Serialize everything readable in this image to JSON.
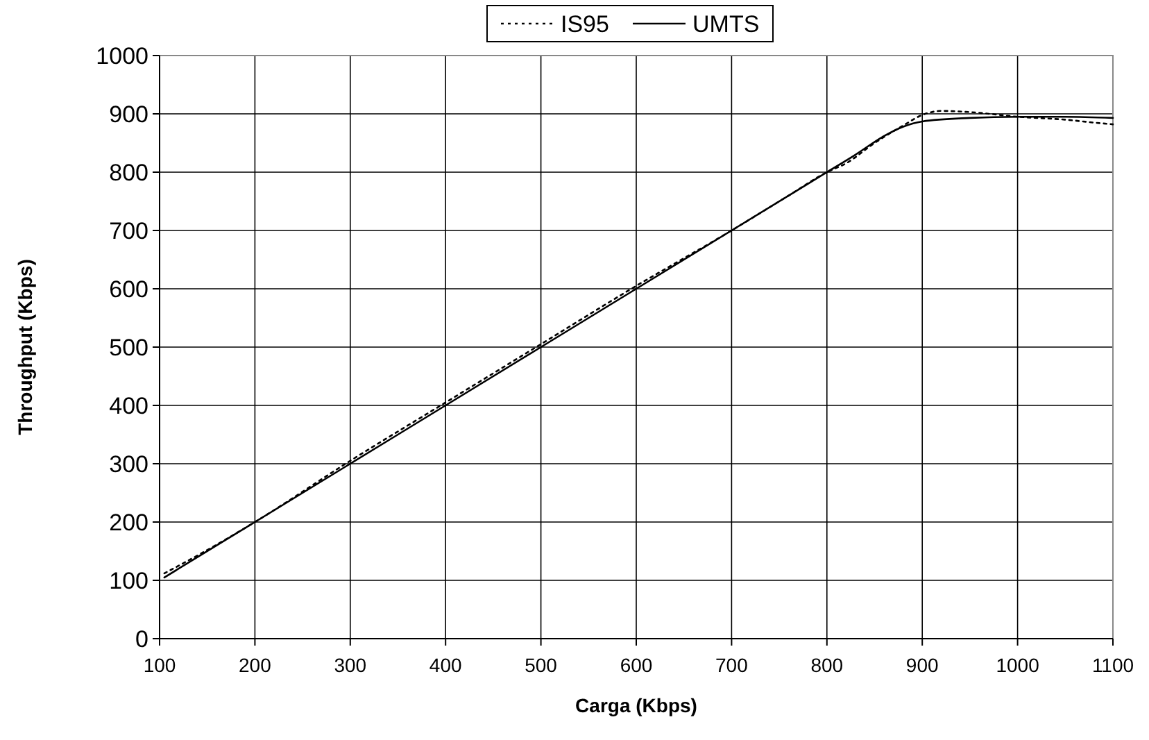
{
  "chart_data": {
    "type": "line",
    "xlabel": "Carga (Kbps)",
    "ylabel": "Throughput (Kbps)",
    "xlim": [
      100,
      1100
    ],
    "ylim": [
      0,
      1000
    ],
    "xticks": [
      100,
      200,
      300,
      400,
      500,
      600,
      700,
      800,
      900,
      1000,
      1100
    ],
    "yticks": [
      0,
      100,
      200,
      300,
      400,
      500,
      600,
      700,
      800,
      900,
      1000
    ],
    "grid": true,
    "legend": "top",
    "marker": "none",
    "series": [
      {
        "name": "IS95",
        "color": "#000000",
        "line_style": "dotted",
        "x": [
          105,
          150,
          200,
          300,
          400,
          500,
          600,
          700,
          760,
          800,
          820,
          850,
          880,
          900,
          920,
          950,
          1000,
          1050,
          1080,
          1100
        ],
        "values": [
          112,
          152,
          200,
          305,
          405,
          505,
          605,
          700,
          760,
          800,
          815,
          850,
          880,
          898,
          905,
          903,
          895,
          890,
          885,
          882
        ]
      },
      {
        "name": "UMTS",
        "color": "#000000",
        "line_style": "solid",
        "x": [
          105,
          200,
          300,
          400,
          500,
          600,
          700,
          780,
          800,
          830,
          860,
          880,
          900,
          950,
          1000,
          1050,
          1100
        ],
        "values": [
          105,
          200,
          300,
          400,
          500,
          600,
          700,
          780,
          800,
          830,
          862,
          878,
          887,
          893,
          895,
          895,
          893
        ]
      }
    ]
  }
}
